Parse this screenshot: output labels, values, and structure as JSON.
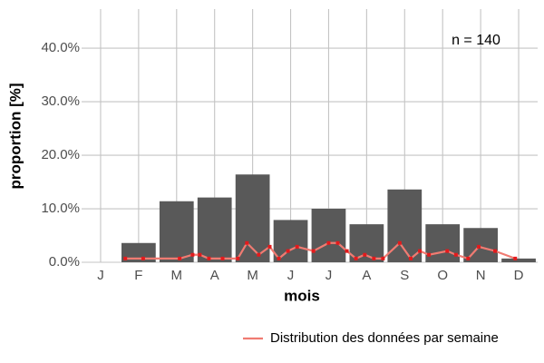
{
  "chart_data": {
    "type": "bar",
    "x_label": "mois",
    "y_label": "proportion [%]",
    "annotation": "n = 140",
    "categories": [
      "J",
      "F",
      "M",
      "A",
      "M",
      "J",
      "J",
      "A",
      "S",
      "O",
      "N",
      "D"
    ],
    "values": [
      0,
      3.6,
      11.4,
      12.1,
      16.4,
      7.9,
      10,
      7.1,
      13.6,
      7.1,
      6.4,
      0.7
    ],
    "color": "#595959",
    "xlim": [
      0.5,
      12.5
    ],
    "ylim": [
      0,
      47.3
    ],
    "yticks": [
      {
        "value": 0,
        "label": "0.0%"
      },
      {
        "value": 10,
        "label": "10.0%"
      },
      {
        "value": 20,
        "label": "20.0%"
      },
      {
        "value": 30,
        "label": "30.0%"
      },
      {
        "value": 40,
        "label": "40.0%"
      }
    ],
    "grid": true,
    "legend": "bottom-right",
    "series": [
      {
        "type": "line",
        "name": "Distribution des données par semaine",
        "color": "#f07b72",
        "point_color": "#e31a1c",
        "x": [
          1.65,
          2.12,
          3.08,
          3.42,
          3.61,
          3.85,
          4.21,
          4.61,
          4.85,
          5.16,
          5.45,
          5.69,
          5.93,
          6.17,
          6.6,
          7.0,
          7.24,
          7.48,
          7.72,
          7.95,
          8.19,
          8.43,
          8.87,
          9.16,
          9.4,
          9.64,
          10.12,
          10.35,
          10.67,
          10.95,
          11.38,
          11.91
        ],
        "values": [
          0.7,
          0.7,
          0.7,
          1.4,
          1.4,
          0.7,
          0.7,
          0.7,
          3.6,
          1.4,
          2.9,
          0.7,
          2.1,
          2.9,
          2.1,
          3.6,
          3.6,
          2.1,
          0.7,
          1.4,
          0.7,
          0.7,
          3.6,
          0.7,
          2.1,
          1.4,
          2.1,
          1.4,
          0.7,
          2.9,
          2.1,
          0.7
        ]
      }
    ]
  }
}
